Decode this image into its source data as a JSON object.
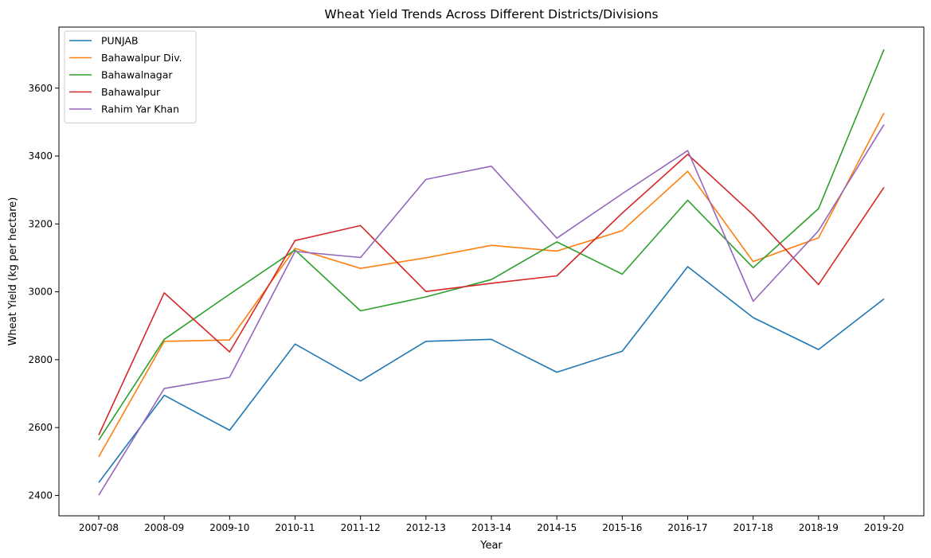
{
  "chart_data": {
    "type": "line",
    "title": "Wheat Yield Trends Across Different Districts/Divisions",
    "xlabel": "Year",
    "ylabel": "Wheat Yield (kg per hectare)",
    "categories": [
      "2007-08",
      "2008-09",
      "2009-10",
      "2010-11",
      "2011-12",
      "2012-13",
      "2013-14",
      "2014-15",
      "2015-16",
      "2016-17",
      "2017-18",
      "2018-19",
      "2019-20"
    ],
    "ylim": [
      2340,
      3780
    ],
    "yticks": [
      2400,
      2600,
      2800,
      3000,
      3200,
      3400,
      3600
    ],
    "grid": false,
    "legend_position": "top-left",
    "series": [
      {
        "name": "PUNJAB",
        "color": "#1f77b4",
        "values": [
          2438,
          2695,
          2592,
          2846,
          2737,
          2854,
          2860,
          2763,
          2825,
          3074,
          2924,
          2830,
          2979
        ]
      },
      {
        "name": "Bahawalpur Div.",
        "color": "#ff7f0e",
        "values": [
          2514,
          2854,
          2858,
          3128,
          3069,
          3100,
          3137,
          3120,
          3180,
          3355,
          3089,
          3159,
          3527
        ]
      },
      {
        "name": "Bahawalnagar",
        "color": "#2ca02c",
        "values": [
          2563,
          2860,
          2993,
          3123,
          2944,
          2985,
          3036,
          3147,
          3052,
          3270,
          3071,
          3245,
          3714
        ]
      },
      {
        "name": "Bahawalpur",
        "color": "#d62728",
        "values": [
          2578,
          2997,
          2823,
          3151,
          3195,
          3001,
          3025,
          3047,
          3232,
          3405,
          3227,
          3021,
          3308
        ]
      },
      {
        "name": "Rahim Yar Khan",
        "color": "#9467bd",
        "values": [
          2401,
          2715,
          2748,
          3119,
          3101,
          3331,
          3370,
          3158,
          3289,
          3416,
          2972,
          3180,
          3493
        ]
      }
    ]
  }
}
